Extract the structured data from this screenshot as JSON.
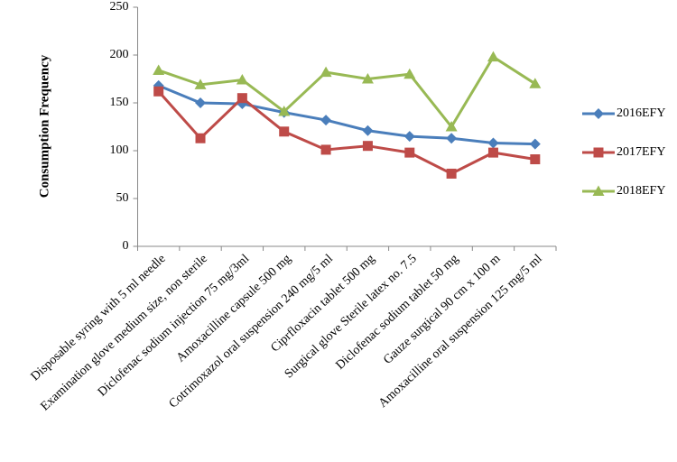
{
  "chart_data": {
    "type": "line",
    "y_label": "Consumption Frequency",
    "categories": [
      "Disposable syring with 5 ml needle",
      "Examination glove medium size, non sterile",
      "Diclofenac sodium injection 75 mg/3ml",
      "Amoxacilline capsule 500 mg",
      "Cotrimoxazol oral suspension 240 mg/5 ml",
      "Ciprfloxacin tablet 500 mg",
      "Surgical glove Sterile latex no. 7.5",
      "Diclofenac sodium tablet 50 mg",
      "Gauze surgical 90 cm x 100 m",
      "Amoxacilline oral suspension 125 mg/5 ml"
    ],
    "series": [
      {
        "name": "2016EFY",
        "color": "#4a7ebb",
        "marker": "diamond",
        "values": [
          168,
          150,
          149,
          140,
          132,
          121,
          115,
          113,
          108,
          107
        ]
      },
      {
        "name": "2017EFY",
        "color": "#be4b48",
        "marker": "square",
        "values": [
          162,
          113,
          155,
          120,
          101,
          105,
          98,
          76,
          98,
          91
        ]
      },
      {
        "name": "2018EFY",
        "color": "#98b954",
        "marker": "triangle",
        "values": [
          184,
          169,
          174,
          141,
          182,
          175,
          180,
          125,
          198,
          170
        ]
      }
    ],
    "ylim": [
      0,
      250
    ],
    "yticks": [
      0,
      50,
      100,
      150,
      200,
      250
    ],
    "grid": false,
    "legend": "right"
  }
}
